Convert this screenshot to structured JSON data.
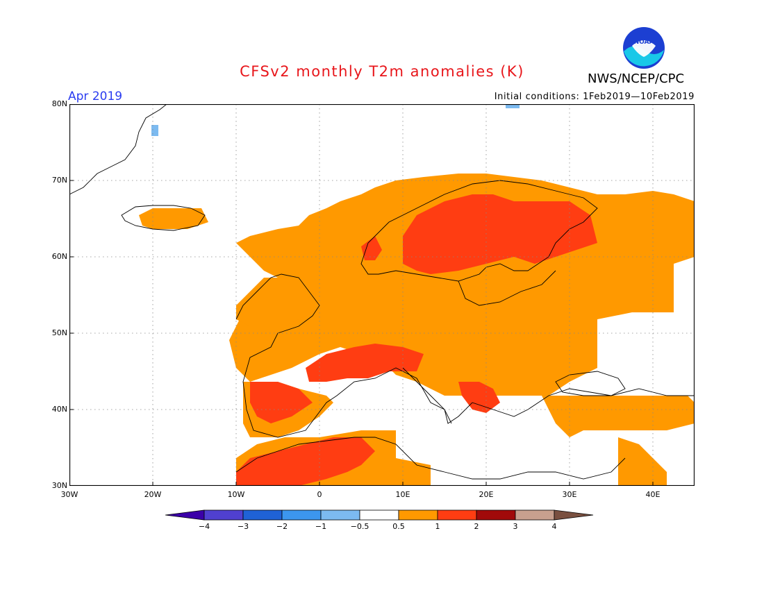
{
  "header": {
    "title": "CFSv2 monthly T2m anomalies (K)",
    "organization": "NWS/NCEP/CPC",
    "logo_text": "NOAA",
    "valid_month": "Apr 2019",
    "initial_conditions": "Initial conditions:  1Feb2019—10Feb2019"
  },
  "axes": {
    "lat_labels": [
      "80N",
      "70N",
      "60N",
      "50N",
      "40N",
      "30N"
    ],
    "lon_labels": [
      "30W",
      "20W",
      "10W",
      "0",
      "10E",
      "20E",
      "30E",
      "40E"
    ]
  },
  "colorbar": {
    "tick_labels": [
      "−4",
      "−3",
      "−2",
      "−1",
      "−0.5",
      "0.5",
      "1",
      "2",
      "3",
      "4"
    ],
    "colors": [
      "#3b00a8",
      "#5040d0",
      "#1f62d6",
      "#3c96ee",
      "#7cbaf0",
      "#ffffff",
      "#ff9900",
      "#ff3d12",
      "#a10a0a",
      "#c8a08e",
      "#7a5040"
    ]
  },
  "map": {
    "legend_colors": {
      "above_0_5": "#ff9900",
      "above_1": "#ff3d12",
      "below_0_5": "#7cbaf0",
      "grid": "#888888"
    }
  }
}
